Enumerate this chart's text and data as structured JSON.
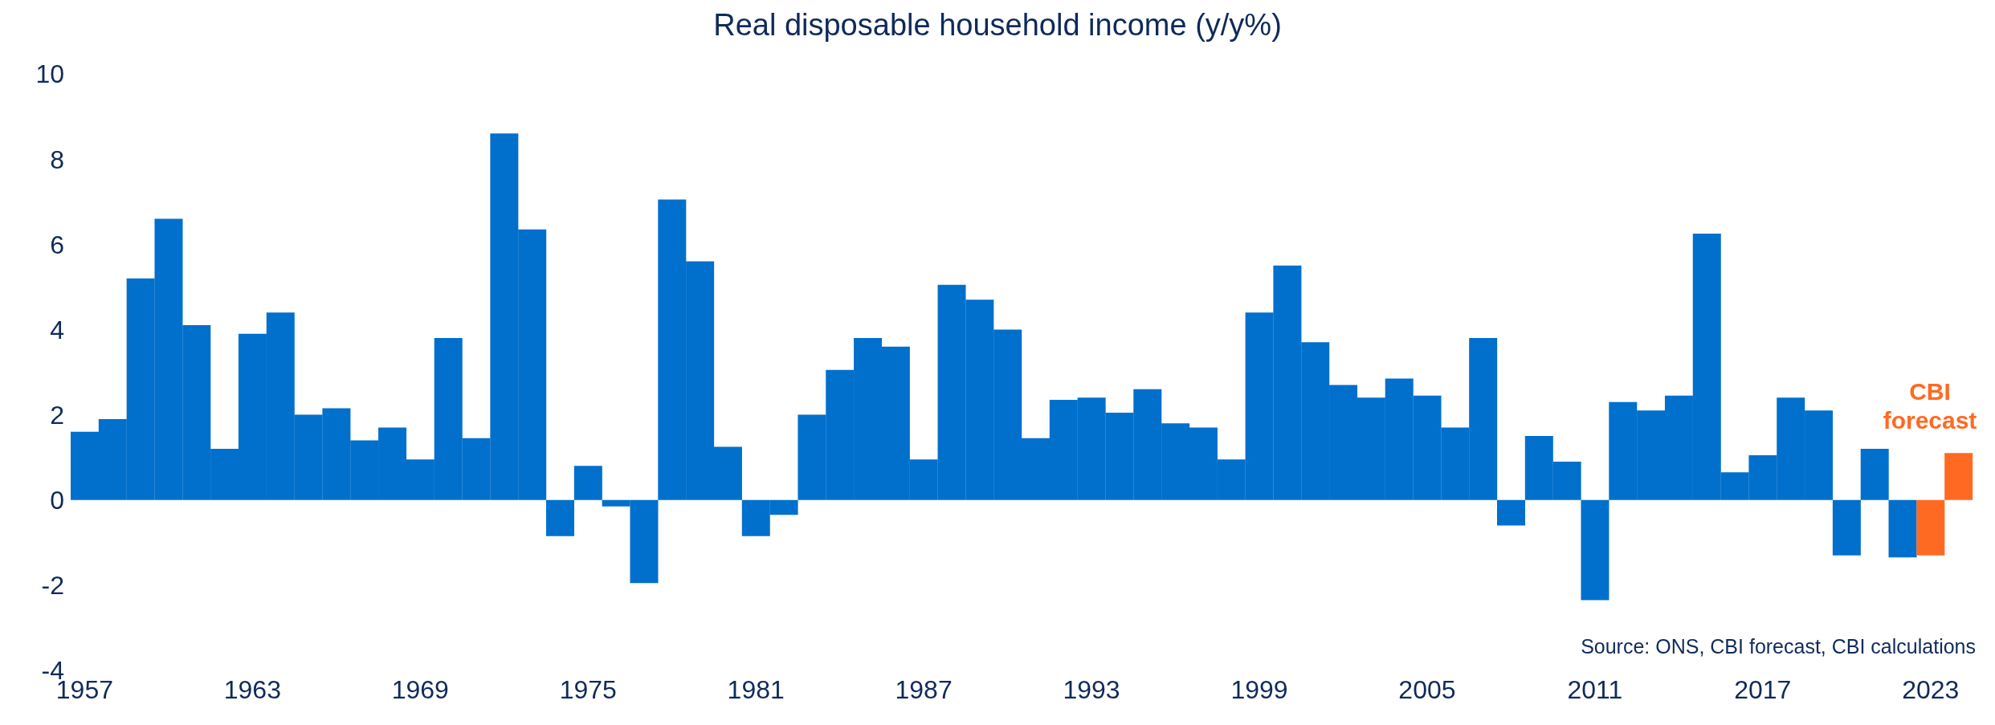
{
  "chart_data": {
    "type": "bar",
    "title": "Real disposable household income (y/y%)",
    "categories": [
      "1957",
      null,
      null,
      null,
      null,
      null,
      "1963",
      null,
      null,
      null,
      null,
      null,
      "1969",
      null,
      null,
      null,
      null,
      null,
      "1975",
      null,
      null,
      null,
      null,
      null,
      "1981",
      null,
      null,
      null,
      null,
      null,
      "1987",
      null,
      null,
      null,
      null,
      null,
      "1993",
      null,
      null,
      null,
      null,
      null,
      "1999",
      null,
      null,
      null,
      null,
      null,
      "2005",
      null,
      null,
      null,
      null,
      null,
      "2011",
      null,
      null,
      null,
      null,
      null,
      "2017",
      null,
      null,
      null,
      null,
      null,
      "2023",
      null
    ],
    "values": [
      1.6,
      1.9,
      5.2,
      6.6,
      4.1,
      1.2,
      3.9,
      4.4,
      2.0,
      2.15,
      1.4,
      1.7,
      0.95,
      3.8,
      1.45,
      8.6,
      6.35,
      -0.85,
      0.8,
      -0.15,
      -1.95,
      7.05,
      5.6,
      1.25,
      -0.85,
      -0.35,
      2.0,
      3.05,
      3.8,
      3.6,
      0.95,
      5.05,
      4.7,
      4.0,
      1.45,
      2.35,
      2.4,
      2.05,
      2.6,
      1.8,
      1.7,
      0.95,
      4.4,
      5.5,
      3.7,
      2.7,
      2.4,
      2.85,
      2.45,
      1.7,
      3.8,
      -0.6,
      1.5,
      0.9,
      -2.35,
      2.3,
      2.1,
      2.45,
      6.25,
      0.65,
      1.05,
      2.4,
      2.1,
      -1.3,
      1.2,
      -1.35,
      -1.3,
      1.1
    ],
    "colors": [
      "#0070cc",
      "#0070cc",
      "#0070cc",
      "#0070cc",
      "#0070cc",
      "#0070cc",
      "#0070cc",
      "#0070cc",
      "#0070cc",
      "#0070cc",
      "#0070cc",
      "#0070cc",
      "#0070cc",
      "#0070cc",
      "#0070cc",
      "#0070cc",
      "#0070cc",
      "#0070cc",
      "#0070cc",
      "#0070cc",
      "#0070cc",
      "#0070cc",
      "#0070cc",
      "#0070cc",
      "#0070cc",
      "#0070cc",
      "#0070cc",
      "#0070cc",
      "#0070cc",
      "#0070cc",
      "#0070cc",
      "#0070cc",
      "#0070cc",
      "#0070cc",
      "#0070cc",
      "#0070cc",
      "#0070cc",
      "#0070cc",
      "#0070cc",
      "#0070cc",
      "#0070cc",
      "#0070cc",
      "#0070cc",
      "#0070cc",
      "#0070cc",
      "#0070cc",
      "#0070cc",
      "#0070cc",
      "#0070cc",
      "#0070cc",
      "#0070cc",
      "#0070cc",
      "#0070cc",
      "#0070cc",
      "#0070cc",
      "#0070cc",
      "#0070cc",
      "#0070cc",
      "#0070cc",
      "#0070cc",
      "#0070cc",
      "#0070cc",
      "#0070cc",
      "#0070cc",
      "#0070cc",
      "#0070cc",
      "#ff6a22",
      "#ff6a22"
    ],
    "ylim": [
      -4,
      10
    ],
    "yticks": [
      -4,
      -2,
      0,
      2,
      4,
      6,
      8,
      10
    ],
    "annotations": [
      "CBI forecast",
      "Source: ONS, CBI forecast, CBI calculations"
    ]
  }
}
